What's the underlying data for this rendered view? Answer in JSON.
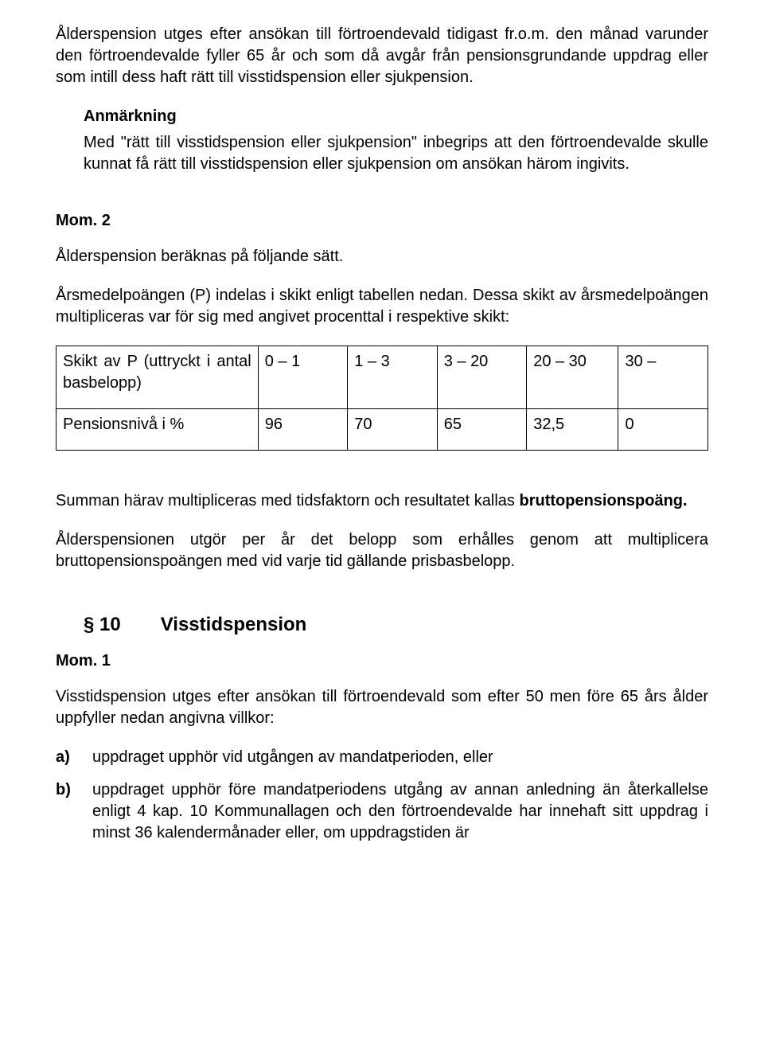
{
  "para1": "Ålderspension utges efter ansökan till förtroendevald tidigast fr.o.m. den månad varunder den förtroendevalde fyller 65 år och som då avgår från pensionsgrundande uppdrag eller som intill dess haft rätt till visstidspension eller sjukpension.",
  "note": {
    "title": "Anmärkning",
    "body": "Med \"rätt till visstidspension eller sjukpension\" inbegrips att den förtroendevalde skulle kunnat få rätt till visstidspension eller sjukpension om ansökan härom ingivits."
  },
  "mom2": "Mom. 2",
  "para2": "Ålderspension beräknas på följande sätt.",
  "para3": "Årsmedelpoängen (P) indelas i skikt enligt tabellen nedan. Dessa skikt av årsmedelpoängen multipliceras var för sig med angivet procenttal i respektive skikt:",
  "table": {
    "row1label": "Skikt av P (uttryckt i antal basbelopp)",
    "row2label": "Pensionsnivå i %",
    "r1": [
      "0 – 1",
      "1 – 3",
      "3 – 20",
      "20 – 30",
      "30 –"
    ],
    "r2": [
      "96",
      "70",
      "65",
      "32,5",
      "0"
    ]
  },
  "para4_pre": "Summan härav multipliceras med tidsfaktorn och resultatet kallas ",
  "para4_bold": "bruttopensionspoäng.",
  "para5": "Ålderspensionen utgör per år det belopp som erhålles genom att multiplicera bruttopensionspoängen med vid varje tid gällande prisbasbelopp.",
  "section10": {
    "num": "§ 10",
    "title": "Visstidspension"
  },
  "mom1": "Mom. 1",
  "para6": "Visstidspension utges efter ansökan till förtroendevald som efter 50 men före 65 års ålder uppfyller nedan angivna villkor:",
  "list": {
    "a_marker": "a)",
    "a_text": "uppdraget upphör vid utgången av mandatperioden, eller",
    "b_marker": "b)",
    "b_text": "uppdraget upphör före mandatperiodens utgång av annan anledning än återkallelse enligt 4 kap. 10 Kommunallagen och den förtroendevalde har innehaft sitt uppdrag i minst 36 kalendermånader eller, om uppdragstiden är"
  }
}
